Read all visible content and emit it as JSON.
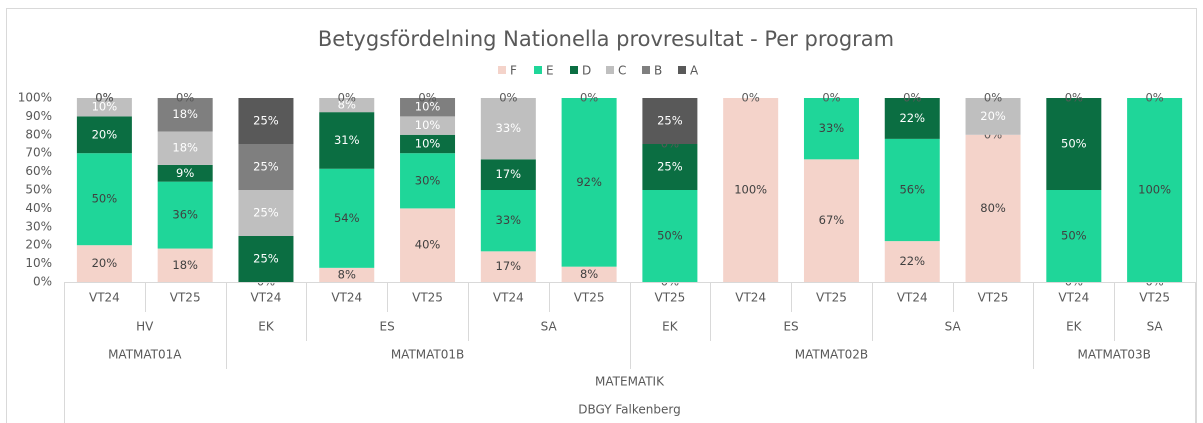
{
  "chart_data": {
    "type": "stacked_bar_100",
    "title": "Betygsfördelning Nationella provresultat - Per program",
    "categories": [
      "VT24",
      "VT25",
      "VT24",
      "VT24",
      "VT25",
      "VT24",
      "VT25",
      "VT25",
      "VT24",
      "VT25",
      "VT24",
      "VT25",
      "VT24",
      "VT25"
    ],
    "category_levels": [
      [
        {
          "label": "HV",
          "span": 2
        },
        {
          "label": "EK",
          "span": 1
        },
        {
          "label": "ES",
          "span": 2
        },
        {
          "label": "SA",
          "span": 2
        },
        {
          "label": "EK",
          "span": 1
        },
        {
          "label": "ES",
          "span": 2
        },
        {
          "label": "SA",
          "span": 2
        },
        {
          "label": "EK",
          "span": 1
        },
        {
          "label": "SA",
          "span": 1
        }
      ],
      [
        {
          "label": "MATMAT01A",
          "span": 2
        },
        {
          "label": "MATMAT01B",
          "span": 5
        },
        {
          "label": "MATMAT02B",
          "span": 5
        },
        {
          "label": "MATMAT03B",
          "span": 2
        }
      ],
      [
        {
          "label": "MATEMATIK",
          "span": 14
        }
      ],
      [
        {
          "label": "DBGY Falkenberg",
          "span": 14
        }
      ]
    ],
    "series": [
      {
        "name": "F",
        "color": "#f4d3ca",
        "label_color": "#404040",
        "values": [
          20,
          18.18,
          0,
          7.69,
          40,
          16.67,
          8.33,
          0,
          100,
          66.67,
          22.22,
          80,
          0,
          0
        ],
        "value_labels": [
          "20%",
          "18%",
          "0%",
          "8%",
          "40%",
          "17%",
          "8%",
          "0%",
          "100%",
          "67%",
          "22%",
          "80%",
          "0%",
          "0%"
        ]
      },
      {
        "name": "E",
        "color": "#1fd699",
        "label_color": "#404040",
        "values": [
          50,
          36.36,
          null,
          53.85,
          30,
          33.33,
          91.67,
          50,
          0,
          33.33,
          55.56,
          0,
          50,
          100
        ],
        "value_labels": [
          "50%",
          "36%",
          null,
          "54%",
          "30%",
          "33%",
          "92%",
          "50%",
          "0%",
          "33%",
          "56%",
          "0%",
          "50%",
          "100%"
        ]
      },
      {
        "name": "D",
        "color": "#0b6e42",
        "label_color": "#ffffff",
        "values": [
          20,
          9.09,
          25,
          30.77,
          10,
          16.67,
          null,
          25,
          null,
          0,
          22.22,
          null,
          50,
          0
        ],
        "value_labels": [
          "20%",
          "9%",
          "25%",
          "31%",
          "10%",
          "17%",
          null,
          "25%",
          null,
          "0%",
          "22%",
          null,
          "50%",
          "0%"
        ]
      },
      {
        "name": "C",
        "color": "#bfbfbf",
        "label_color": "#ffffff",
        "values": [
          10,
          18.18,
          25,
          7.69,
          10,
          33.33,
          null,
          0,
          null,
          null,
          0,
          20,
          0,
          null
        ],
        "value_labels": [
          "10%",
          "18%",
          "25%",
          "8%",
          "10%",
          "33%",
          null,
          "0%",
          null,
          null,
          "0%",
          "20%",
          "0%",
          null
        ],
        "label_color2": "#404040"
      },
      {
        "name": "B",
        "color": "#7f7f7f",
        "label_color": "#ffffff",
        "values": [
          0,
          18.18,
          25,
          0,
          10,
          0,
          null,
          null,
          null,
          null,
          null,
          null,
          null,
          null
        ],
        "value_labels": [
          "0%",
          "18%",
          "25%",
          "0%",
          "10%",
          "0%",
          null,
          null,
          null,
          null,
          null,
          null,
          null,
          null
        ]
      },
      {
        "name": "A",
        "color": "#595959",
        "label_color": "#ffffff",
        "values": [
          0,
          0,
          25,
          null,
          0,
          null,
          0,
          25,
          null,
          null,
          null,
          0,
          null,
          null
        ],
        "value_labels": [
          "0%",
          "0%",
          "25%",
          null,
          "0%",
          null,
          "0%",
          "25%",
          null,
          null,
          null,
          "0%",
          null,
          null
        ]
      }
    ],
    "ylim": [
      0,
      100
    ],
    "yticks": [
      {
        "value": 0,
        "label": "0%"
      },
      {
        "value": 10,
        "label": "10%"
      },
      {
        "value": 20,
        "label": "20%"
      },
      {
        "value": 30,
        "label": "30%"
      },
      {
        "value": 40,
        "label": "40%"
      },
      {
        "value": 50,
        "label": "50%"
      },
      {
        "value": 60,
        "label": "60%"
      },
      {
        "value": 70,
        "label": "70%"
      },
      {
        "value": 80,
        "label": "80%"
      },
      {
        "value": 90,
        "label": "90%"
      },
      {
        "value": 100,
        "label": "100%"
      }
    ],
    "grid": false,
    "legend": "top"
  }
}
